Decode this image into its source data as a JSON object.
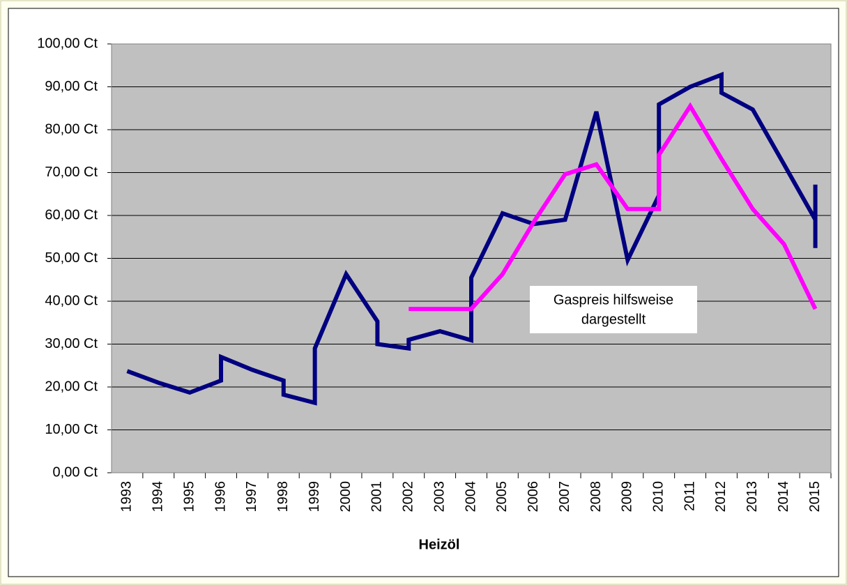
{
  "chart_data": {
    "type": "line",
    "x_label": "Heizöl",
    "annotation": [
      "Gaspreis hilfsweise",
      "dargestellt"
    ],
    "xlim": [
      1992.5,
      2015.5
    ],
    "xticks": [
      1993,
      1994,
      1995,
      1996,
      1997,
      1998,
      1999,
      2000,
      2001,
      2002,
      2003,
      2004,
      2005,
      2006,
      2007,
      2008,
      2009,
      2010,
      2011,
      2012,
      2013,
      2014,
      2015
    ],
    "ylim": [
      0,
      100
    ],
    "yticks": [
      {
        "value": 0,
        "label": "0,00 Ct"
      },
      {
        "value": 10,
        "label": "10,00 Ct"
      },
      {
        "value": 20,
        "label": "20,00 Ct"
      },
      {
        "value": 30,
        "label": "30,00 Ct"
      },
      {
        "value": 40,
        "label": "40,00 Ct"
      },
      {
        "value": 50,
        "label": "50,00 Ct"
      },
      {
        "value": 60,
        "label": "60,00 Ct"
      },
      {
        "value": 70,
        "label": "70,00 Ct"
      },
      {
        "value": 80,
        "label": "80,00 Ct"
      },
      {
        "value": 90,
        "label": "90,00 Ct"
      },
      {
        "value": 100,
        "label": "100,00 Ct"
      }
    ],
    "grid": true,
    "plot_background": "#c0c0c0",
    "series": [
      {
        "color": "#000080",
        "x": [
          1993,
          1994,
          1995,
          1996,
          1996,
          1997,
          1998,
          1998,
          1999,
          1999,
          2000,
          2001,
          2001,
          2002,
          2002,
          2003,
          2004,
          2004,
          2005,
          2006,
          2007,
          2008,
          2009,
          2010,
          2010,
          2011,
          2012,
          2012,
          2013,
          2014,
          2015,
          2015,
          2015
        ],
        "values": [
          23.7,
          21,
          18.7,
          21.5,
          27,
          24,
          21.5,
          18.2,
          16.3,
          29,
          46.3,
          35.3,
          30,
          29,
          31,
          33,
          30.9,
          45.5,
          60.5,
          58,
          59,
          84.2,
          49.6,
          64.7,
          85.9,
          90,
          92.8,
          88.6,
          84.7,
          71.9,
          59,
          67.2,
          52.4
        ]
      },
      {
        "color": "#ff00ff",
        "x": [
          2002,
          2003,
          2004,
          2005,
          2006,
          2007,
          2008,
          2009,
          2010,
          2010,
          2011,
          2012,
          2013,
          2014,
          2015
        ],
        "values": [
          38.2,
          38.2,
          38.2,
          46.3,
          58.5,
          69.6,
          71.9,
          61.5,
          61.5,
          74.1,
          85.5,
          73.2,
          61.5,
          53.3,
          38.2
        ]
      }
    ]
  }
}
